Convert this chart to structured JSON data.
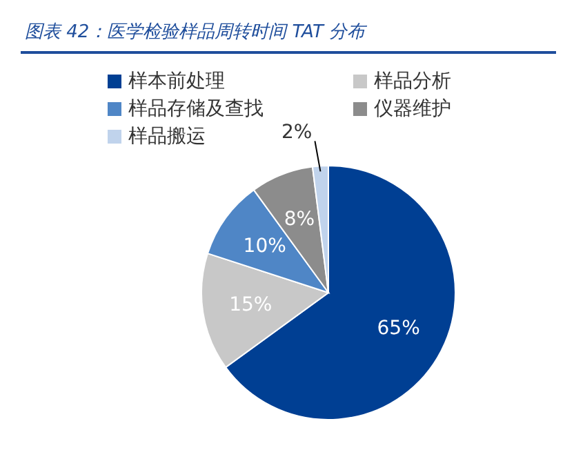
{
  "chart_data": {
    "type": "pie",
    "title": "图表 42：医学检验样品周转时间 TAT 分布",
    "categories": [
      "样本前处理",
      "样品分析",
      "样品存储及查找",
      "仪器维护",
      "样品搬运"
    ],
    "values": [
      65,
      15,
      10,
      8,
      2
    ],
    "colors": [
      "#003f93",
      "#c8c8c8",
      "#4f86c6",
      "#8c8c8c",
      "#c0d3ec"
    ],
    "value_labels": [
      "65%",
      "15%",
      "10%",
      "8%",
      "2%"
    ],
    "legend": "top"
  }
}
